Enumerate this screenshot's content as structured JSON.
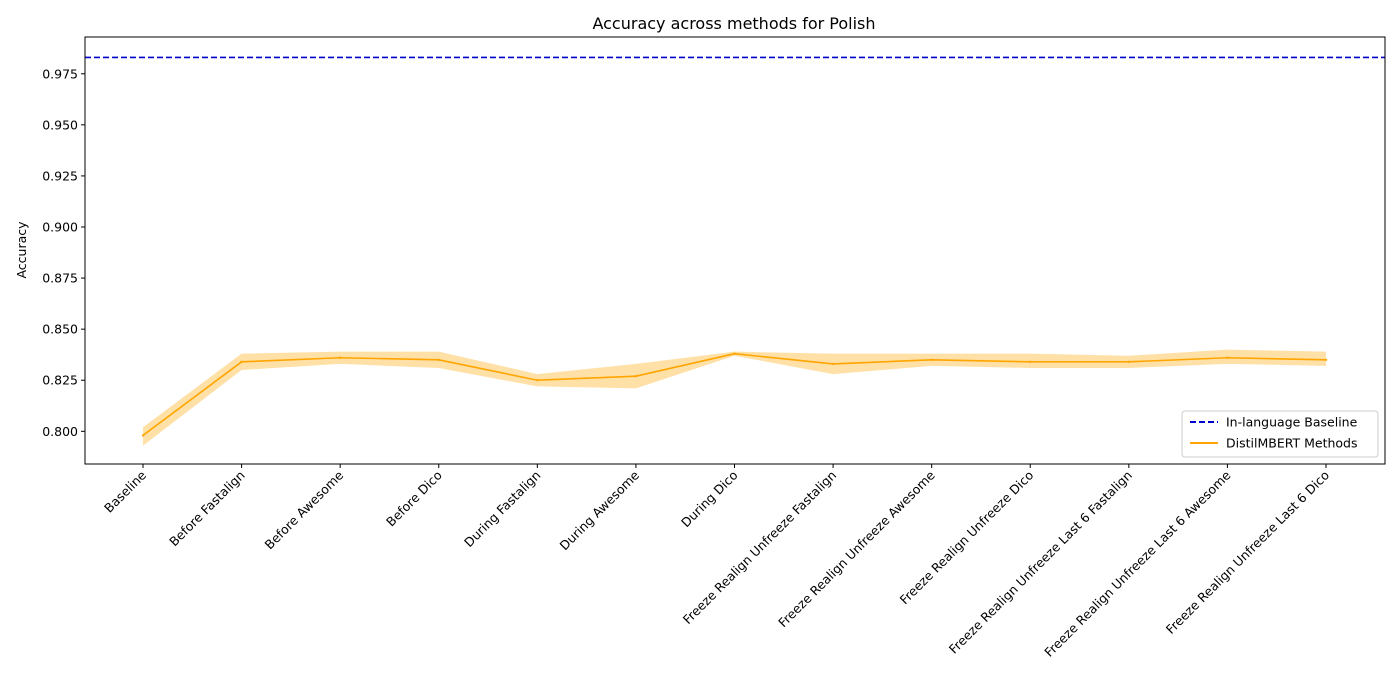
{
  "chart_data": {
    "type": "line",
    "title": "Accuracy across methods for Polish",
    "xlabel": "",
    "ylabel": "Accuracy",
    "categories": [
      "Baseline",
      "Before Fastalign",
      "Before Awesome",
      "Before Dico",
      "During Fastalign",
      "During Awesome",
      "During Dico",
      "Freeze Realign Unfreeze Fastalign",
      "Freeze Realign Unfreeze Awesome",
      "Freeze Realign Unfreeze Dico",
      "Freeze Realign Unfreeze Last 6 Fastalign",
      "Freeze Realign Unfreeze Last 6 Awesome",
      "Freeze Realign Unfreeze Last 6 Dico"
    ],
    "ylim": [
      0.784,
      0.993
    ],
    "yticks": [
      "0.800",
      "0.825",
      "0.850",
      "0.875",
      "0.900",
      "0.925",
      "0.950",
      "0.975"
    ],
    "grid": false,
    "legend_position": "lower-right",
    "series": [
      {
        "name": "In-language Baseline",
        "style": "dashed",
        "color": "#0000cc",
        "value": 0.983
      },
      {
        "name": "DistilMBERT Methods",
        "style": "solid",
        "color": "#ffa500",
        "band_color": "#ffd58a",
        "values": [
          0.798,
          0.834,
          0.836,
          0.835,
          0.825,
          0.827,
          0.838,
          0.833,
          0.835,
          0.834,
          0.834,
          0.836,
          0.835
        ],
        "lower": [
          0.793,
          0.83,
          0.833,
          0.831,
          0.822,
          0.821,
          0.837,
          0.828,
          0.832,
          0.831,
          0.831,
          0.833,
          0.832
        ],
        "upper": [
          0.802,
          0.838,
          0.839,
          0.839,
          0.828,
          0.833,
          0.839,
          0.838,
          0.838,
          0.838,
          0.837,
          0.84,
          0.839
        ]
      }
    ]
  }
}
